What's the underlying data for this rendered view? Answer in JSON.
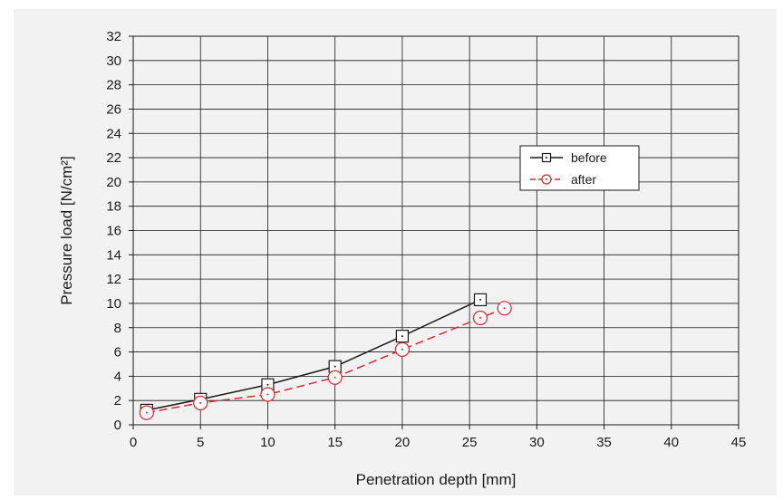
{
  "chart_data": {
    "type": "line",
    "xlabel": "Penetration depth [mm]",
    "ylabel": "Pressure load [N/cm²]",
    "xlim": [
      0,
      45
    ],
    "ylim": [
      0,
      32
    ],
    "xticks": [
      0,
      5,
      10,
      15,
      20,
      25,
      30,
      35,
      40,
      45
    ],
    "yticks": [
      0,
      2,
      4,
      6,
      8,
      10,
      12,
      14,
      16,
      18,
      20,
      22,
      24,
      26,
      28,
      30,
      32
    ],
    "grid": true,
    "legend_position": "upper-right",
    "series": [
      {
        "name": "before",
        "color": "#1a1a1a",
        "line_style": "solid",
        "marker": "square-with-dot",
        "x": [
          1,
          5,
          10,
          15,
          20,
          25.8
        ],
        "y": [
          1.2,
          2.1,
          3.3,
          4.8,
          7.3,
          10.3
        ]
      },
      {
        "name": "after",
        "color": "#e8232a",
        "line_style": "dashed",
        "marker": "circle-with-dot",
        "x": [
          1,
          5,
          10,
          15,
          20,
          25.8,
          27.6
        ],
        "y": [
          1.0,
          1.8,
          2.5,
          3.9,
          6.2,
          8.8,
          9.6
        ]
      }
    ]
  }
}
